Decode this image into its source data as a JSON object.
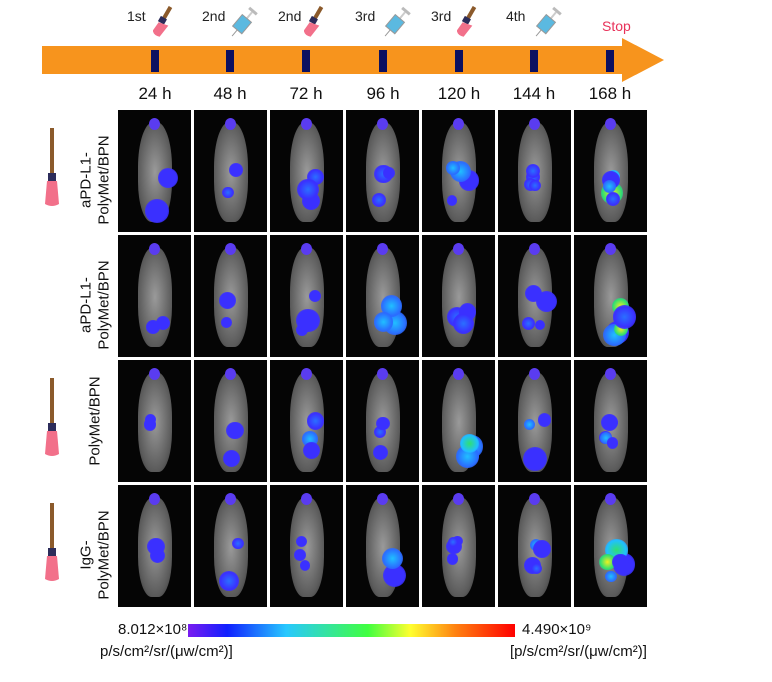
{
  "timeline": {
    "times": [
      "24 h",
      "48 h",
      "72 h",
      "96 h",
      "120 h",
      "144 h",
      "168 h"
    ],
    "doses": [
      {
        "label": "1st",
        "icon": "brush-icon"
      },
      {
        "label": "2nd",
        "icon": "syringe-icon"
      },
      {
        "label": "2nd",
        "icon": "brush-icon"
      },
      {
        "label": "3rd",
        "icon": "syringe-icon"
      },
      {
        "label": "3rd",
        "icon": "brush-icon"
      },
      {
        "label": "4th",
        "icon": "syringe-icon"
      },
      {
        "label": "Stop",
        "icon": ""
      }
    ]
  },
  "rows": [
    {
      "line1": "aPD-L1-",
      "line2": "PolyMet/BPN",
      "icon": "brush-icon"
    },
    {
      "line1": "aPD-L1-",
      "line2": "PolyMet/BPN",
      "icon": ""
    },
    {
      "line1": "",
      "line2": "PolyMet/BPN",
      "icon": "brush-icon"
    },
    {
      "line1": "IgG-",
      "line2": "PolyMet/BPN",
      "icon": "brush-icon"
    }
  ],
  "scale": {
    "min": "8.012×10⁸",
    "max": "4.490×10⁹",
    "unit_left": "p/s/cm²/sr/(μw/cm²)]",
    "unit_right": "[p/s/cm²/sr/(μw/cm²)]"
  }
}
